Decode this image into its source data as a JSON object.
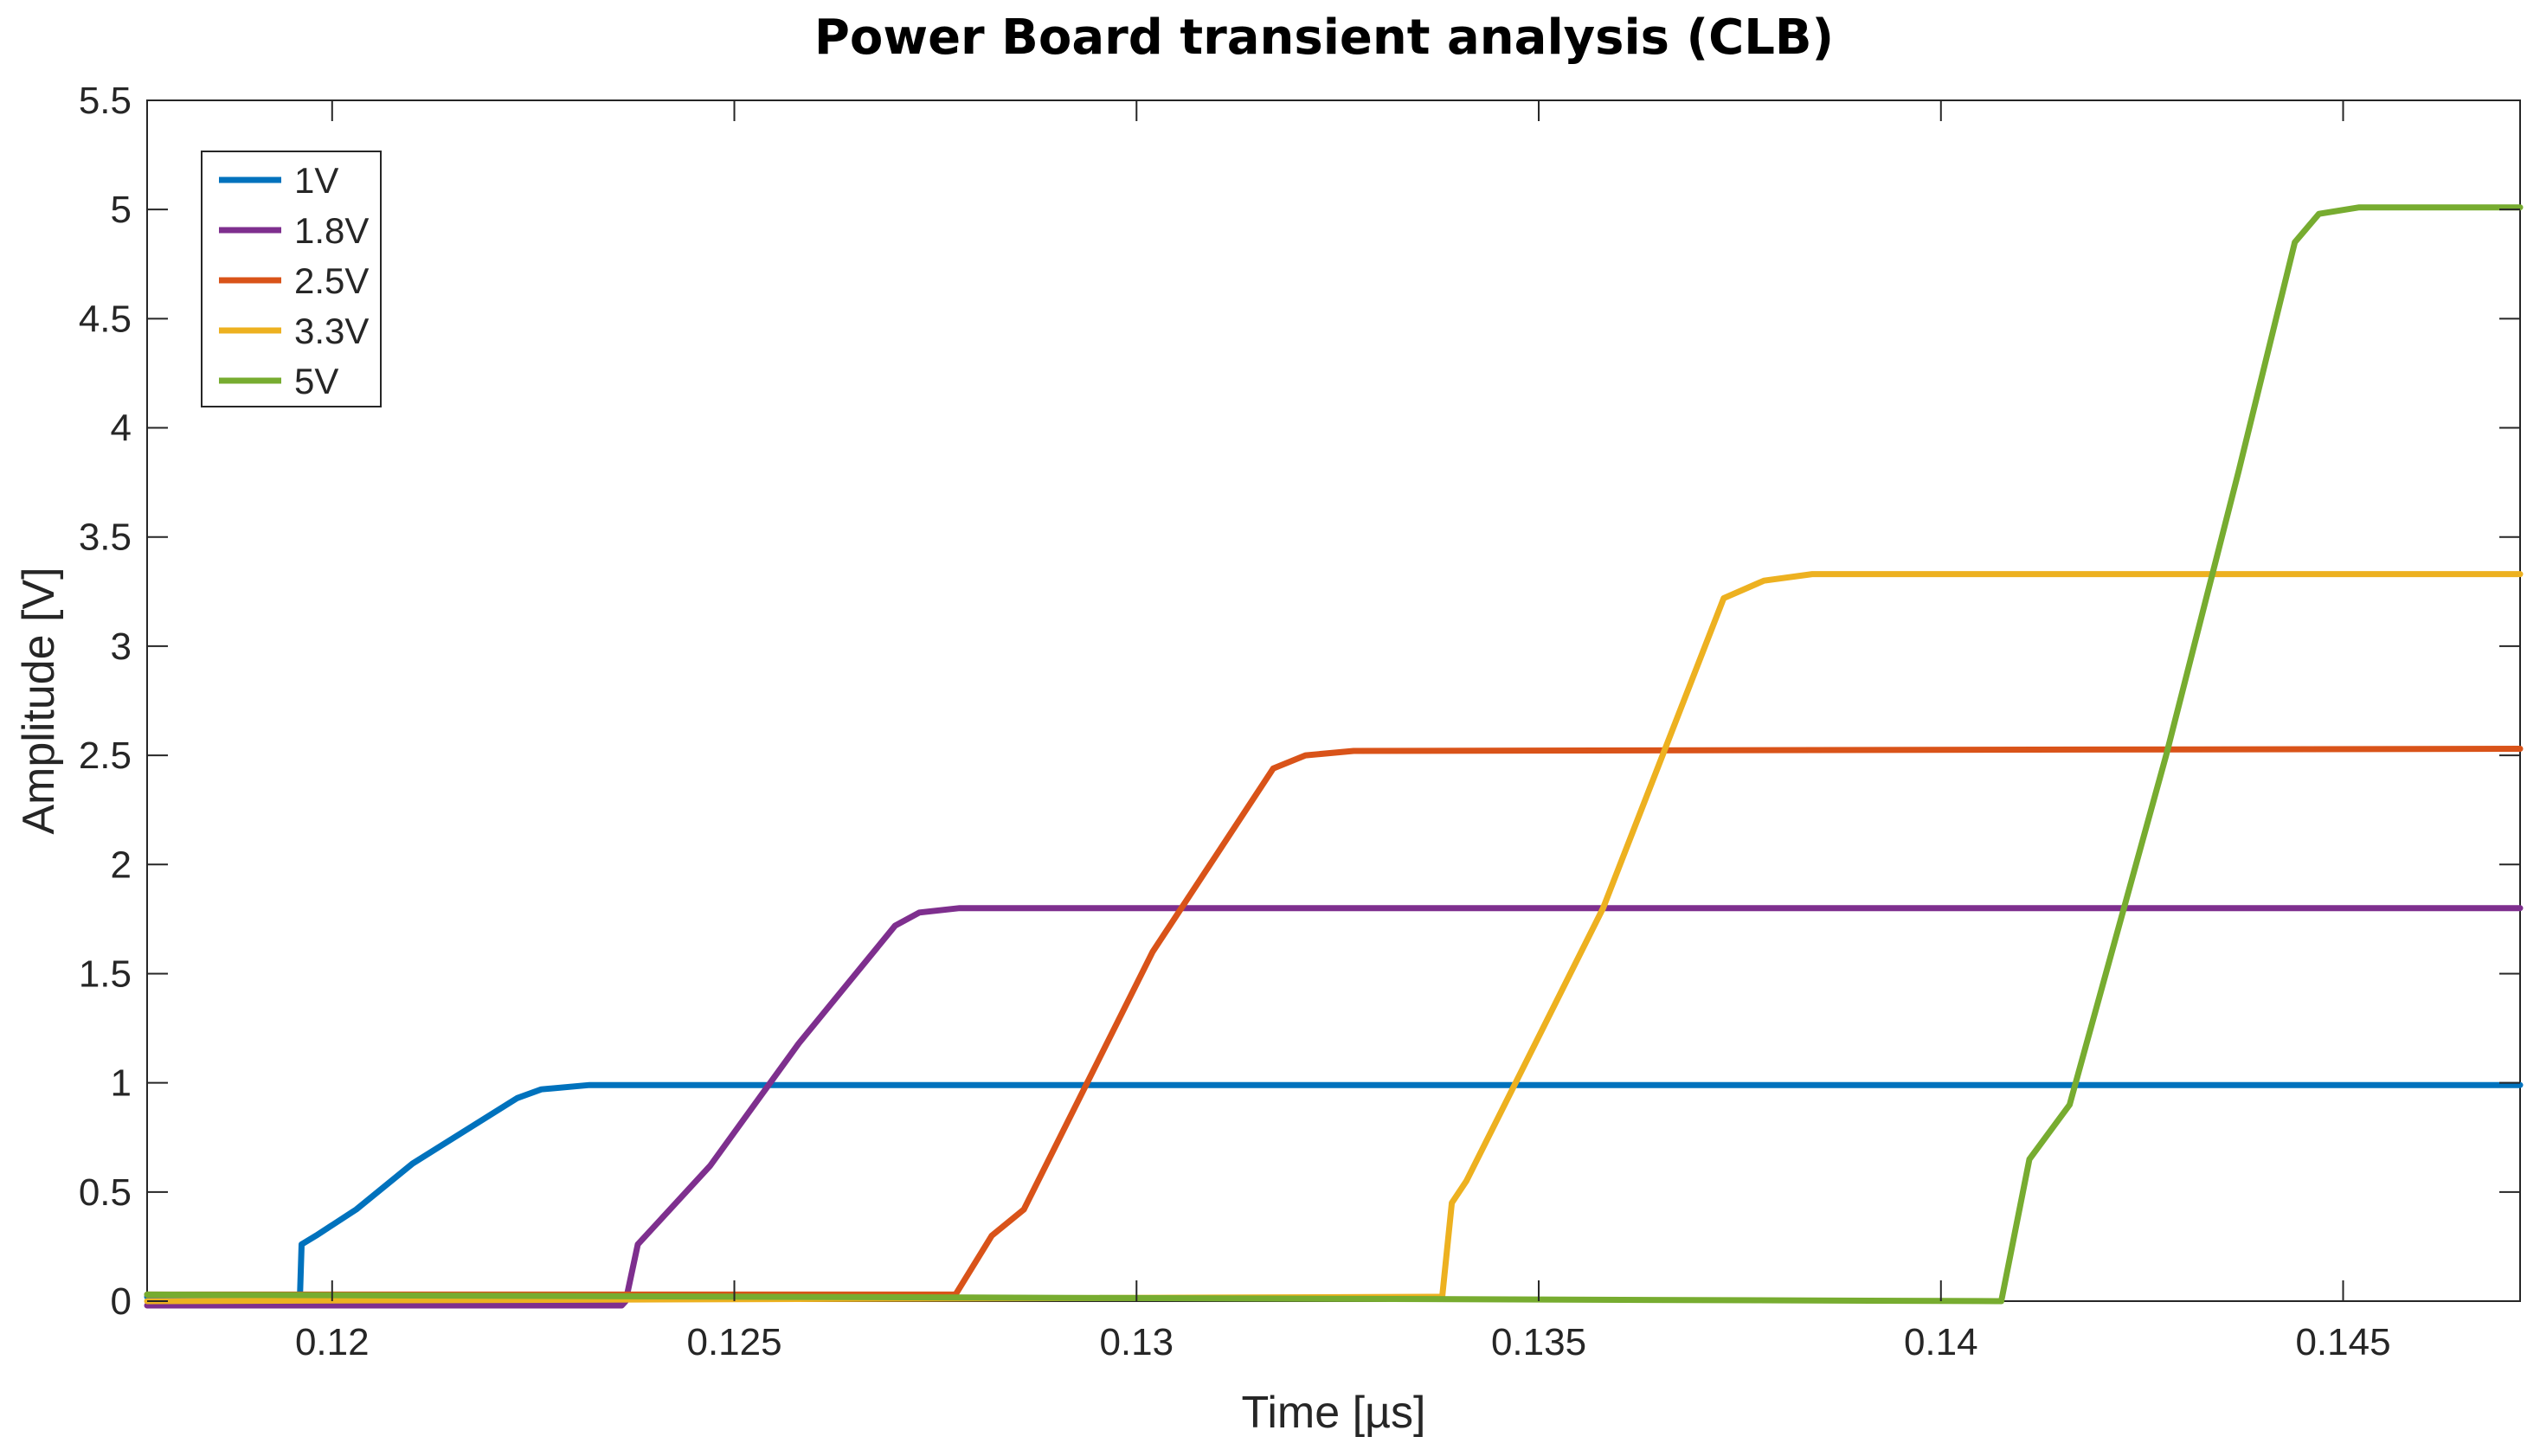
{
  "chart_data": {
    "type": "line",
    "title": "Power Board transient analysis (CLB)",
    "xlabel": "Time [µs]",
    "ylabel": "Amplitude [V]",
    "xlim": [
      0.1177,
      0.1472
    ],
    "ylim": [
      0,
      5.5
    ],
    "xticks": [
      0.12,
      0.125,
      0.13,
      0.135,
      0.14,
      0.145
    ],
    "xtick_labels": [
      "0.12",
      "0.125",
      "0.13",
      "0.135",
      "0.14",
      "0.145"
    ],
    "yticks": [
      0,
      0.5,
      1,
      1.5,
      2,
      2.5,
      3,
      3.5,
      4,
      4.5,
      5,
      5.5
    ],
    "ytick_labels": [
      "0",
      "0.5",
      "1",
      "1.5",
      "2",
      "2.5",
      "3",
      "3.5",
      "4",
      "4.5",
      "5",
      "5.5"
    ],
    "grid": false,
    "legend_position": "top-left",
    "series": [
      {
        "name": "1V",
        "color": "#0072BD",
        "x": [
          0.1177,
          0.1196,
          0.11962,
          0.1198,
          0.1203,
          0.121,
          0.1223,
          0.1226,
          0.1232,
          0.1472
        ],
        "y": [
          0.02,
          0.02,
          0.26,
          0.3,
          0.42,
          0.63,
          0.93,
          0.97,
          0.99,
          0.99
        ]
      },
      {
        "name": "1.8V",
        "color": "#7E2F8E",
        "x": [
          0.1177,
          0.1236,
          0.12365,
          0.1238,
          0.1247,
          0.1258,
          0.127,
          0.1273,
          0.1278,
          0.1472
        ],
        "y": [
          -0.02,
          -0.02,
          0.0,
          0.26,
          0.62,
          1.18,
          1.72,
          1.78,
          1.8,
          1.8
        ]
      },
      {
        "name": "2.5V",
        "color": "#D95319",
        "x": [
          0.1177,
          0.1277,
          0.12775,
          0.1282,
          0.1286,
          0.1302,
          0.1317,
          0.1321,
          0.1327,
          0.1472
        ],
        "y": [
          0.03,
          0.03,
          0.03,
          0.3,
          0.42,
          1.6,
          2.44,
          2.5,
          2.52,
          2.53
        ]
      },
      {
        "name": "3.3V",
        "color": "#EDB120",
        "x": [
          0.1177,
          0.1338,
          0.13392,
          0.1341,
          0.1358,
          0.1373,
          0.1378,
          0.1384,
          0.1472
        ],
        "y": [
          0.0,
          0.02,
          0.45,
          0.55,
          1.8,
          3.22,
          3.3,
          3.33,
          3.33
        ]
      },
      {
        "name": "5V",
        "color": "#77AC30",
        "x": [
          0.1177,
          0.1407,
          0.14075,
          0.1411,
          0.1416,
          0.1428,
          0.1437,
          0.1444,
          0.1447,
          0.1452,
          0.1472
        ],
        "y": [
          0.03,
          0.0,
          0.0,
          0.65,
          0.9,
          2.5,
          3.8,
          4.85,
          4.98,
          5.01,
          5.01
        ]
      }
    ]
  }
}
